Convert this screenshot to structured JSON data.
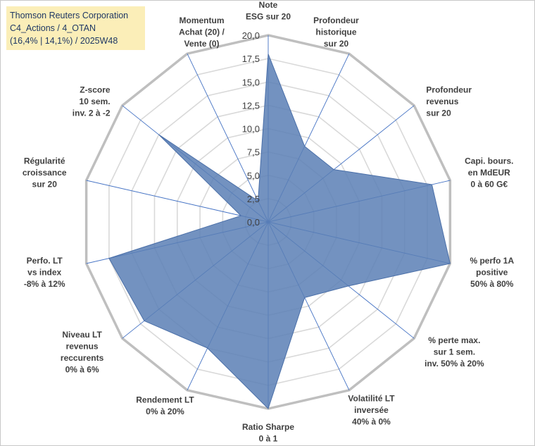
{
  "title_box": {
    "line1": "Thomson Reuters Corporation",
    "line2": "C4_Actions / 4_OTAN",
    "line3": "(16,4% | 14,1%) / 2025W48"
  },
  "chart_data": {
    "type": "radar",
    "rmax": 20,
    "ticks": [
      {
        "value": 0,
        "label": "0,0"
      },
      {
        "value": 2.5,
        "label": "2,5"
      },
      {
        "value": 5,
        "label": "5,0"
      },
      {
        "value": 7.5,
        "label": "7,5"
      },
      {
        "value": 10,
        "label": "10,0"
      },
      {
        "value": 12.5,
        "label": "12,5"
      },
      {
        "value": 15,
        "label": "15,0"
      },
      {
        "value": 17.5,
        "label": "17,5"
      },
      {
        "value": 20,
        "label": "20,0"
      }
    ],
    "axes": [
      {
        "label": [
          "Note",
          "ESG sur 20"
        ],
        "value": 18
      },
      {
        "label": [
          "Profondeur",
          "historique",
          "sur 20"
        ],
        "value": 9
      },
      {
        "label": [
          "Profondeur",
          "revenus",
          "sur 20"
        ],
        "value": 9
      },
      {
        "label": [
          "Capi. bours.",
          "en MdEUR",
          "0 à 60 G€"
        ],
        "value": 18
      },
      {
        "label": [
          "% perfo 1A",
          "positive",
          "50% à 80%"
        ],
        "value": 20
      },
      {
        "label": [
          "% perte max.",
          "sur 1 sem.",
          "inv. 50% à 20%"
        ],
        "value": 11
      },
      {
        "label": [
          "Volatilité LT",
          "inversée",
          "40% à 0%"
        ],
        "value": 9
      },
      {
        "label": [
          "Ratio Sharpe",
          "0 à 1"
        ],
        "value": 20
      },
      {
        "label": [
          "Rendement LT",
          "0% à 20%"
        ],
        "value": 15
      },
      {
        "label": [
          "Niveau LT",
          "revenus",
          "reccurents",
          "0% à 6%"
        ],
        "value": 17
      },
      {
        "label": [
          "Perfo. LT",
          "vs index",
          "-8% à 12%"
        ],
        "value": 17.5
      },
      {
        "label": [
          "Régularité",
          "croissance",
          "sur 20"
        ],
        "value": 3
      },
      {
        "label": [
          "Z-score",
          "10 sem.",
          "inv. 2 à -2"
        ],
        "value": 15
      },
      {
        "label": [
          "Momentum",
          "Achat (20) /",
          "Vente (0)"
        ],
        "value": 2.5
      }
    ],
    "colors": {
      "fill": "#5b7fb5",
      "stroke": "#4a6fa8",
      "spokes": "#4472c4",
      "grid": "#d9d9d9",
      "outer_ring": "#bfbfbf"
    }
  }
}
